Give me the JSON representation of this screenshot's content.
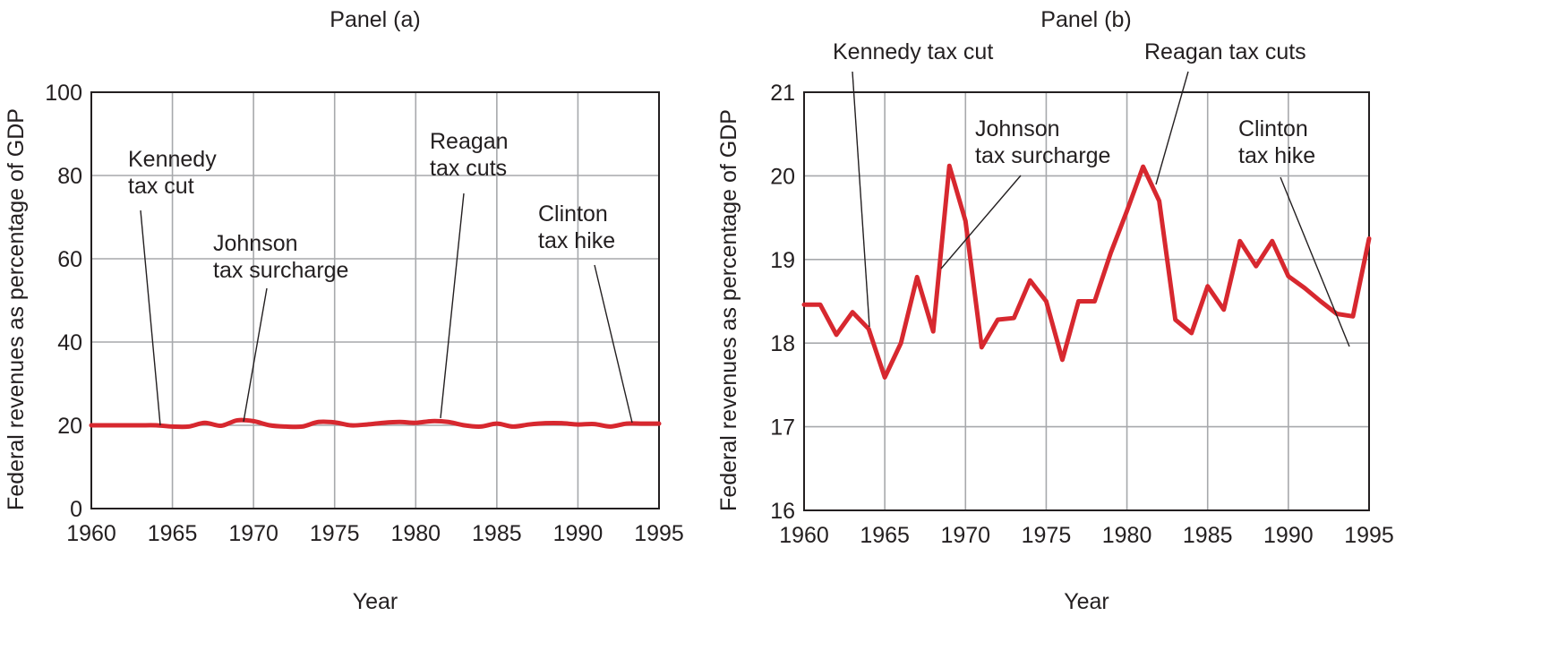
{
  "colors": {
    "series": "#d7282f",
    "grid": "#a7a9ac",
    "text": "#231f20"
  },
  "chart_data": [
    {
      "type": "line",
      "title": "Panel (a)",
      "xlabel": "Year",
      "ylabel": "Federal revenues as percentage of GDP",
      "xlim": [
        1960,
        1995
      ],
      "ylim": [
        0,
        100
      ],
      "grid": true,
      "xticks": [
        1960,
        1965,
        1970,
        1975,
        1980,
        1985,
        1990,
        1995
      ],
      "yticks": [
        0,
        20,
        40,
        60,
        80,
        100
      ],
      "xtick_labels": [
        "1960",
        "1965",
        "1970",
        "1975",
        "1980",
        "1985",
        "1990",
        "1995"
      ],
      "ytick_labels": [
        "0",
        "20",
        "40",
        "60",
        "80",
        "100"
      ],
      "series": [
        {
          "name": "Federal revenues (% of GDP)",
          "x": [
            1960,
            1961,
            1962,
            1963,
            1964,
            1965,
            1966,
            1967,
            1968,
            1969,
            1970,
            1971,
            1972,
            1973,
            1974,
            1975,
            1976,
            1977,
            1978,
            1979,
            1980,
            1981,
            1982,
            1983,
            1984,
            1985,
            1986,
            1987,
            1988,
            1989,
            1990,
            1991,
            1992,
            1993,
            1994,
            1995
          ],
          "values": [
            20.0,
            20.0,
            20.0,
            20.0,
            20.0,
            19.7,
            19.7,
            20.6,
            19.9,
            21.2,
            21.0,
            20.0,
            19.7,
            19.7,
            20.8,
            20.7,
            20.0,
            20.2,
            20.6,
            20.8,
            20.6,
            21.0,
            20.8,
            20.0,
            19.7,
            20.4,
            19.7,
            20.2,
            20.5,
            20.5,
            20.2,
            20.3,
            19.7,
            20.4,
            20.4,
            20.4
          ]
        }
      ],
      "annotations": [
        {
          "lines": [
            "Kennedy",
            "tax cut"
          ],
          "year": 1964
        },
        {
          "lines": [
            "Johnson",
            "tax surcharge"
          ],
          "year": 1969.3
        },
        {
          "lines": [
            "Reagan",
            "tax cuts"
          ],
          "year": 1981.5
        },
        {
          "lines": [
            "Clinton",
            "tax hike"
          ],
          "year": 1993.3
        }
      ]
    },
    {
      "type": "line",
      "title": "Panel (b)",
      "xlabel": "Year",
      "ylabel": "Federal revenues as percentage of GDP",
      "xlim": [
        1960,
        1995
      ],
      "ylim": [
        16,
        21
      ],
      "grid": true,
      "xticks": [
        1960,
        1965,
        1970,
        1975,
        1980,
        1985,
        1990,
        1995
      ],
      "yticks": [
        16,
        17,
        18,
        19,
        20,
        21
      ],
      "xtick_labels": [
        "1960",
        "1965",
        "1970",
        "1975",
        "1980",
        "1985",
        "1990",
        "1995"
      ],
      "ytick_labels": [
        "16",
        "17",
        "18",
        "19",
        "20",
        "21"
      ],
      "series": [
        {
          "name": "Federal revenues (% of GDP)",
          "x": [
            1960,
            1961,
            1962,
            1963,
            1964,
            1965,
            1966,
            1967,
            1968,
            1969,
            1970,
            1971,
            1972,
            1973,
            1974,
            1975,
            1976,
            1977,
            1978,
            1979,
            1980,
            1981,
            1982,
            1983,
            1984,
            1985,
            1986,
            1987,
            1988,
            1989,
            1990,
            1991,
            1992,
            1993,
            1994,
            1995
          ],
          "values": [
            18.46,
            18.46,
            18.1,
            18.37,
            18.17,
            17.59,
            18.0,
            18.79,
            18.14,
            20.12,
            19.46,
            17.95,
            18.28,
            18.3,
            18.75,
            18.5,
            17.8,
            18.5,
            18.5,
            19.08,
            19.58,
            20.11,
            19.7,
            18.28,
            18.12,
            18.68,
            18.4,
            19.22,
            18.92,
            19.22,
            18.8,
            18.66,
            18.5,
            18.35,
            18.32,
            19.25
          ]
        }
      ],
      "annotations": [
        {
          "lines": [
            "Kennedy tax cut"
          ],
          "year": 1964
        },
        {
          "lines": [
            "Johnson",
            "tax surcharge"
          ],
          "year": 1968.6
        },
        {
          "lines": [
            "Reagan tax cuts"
          ],
          "year": 1981.5
        },
        {
          "lines": [
            "Clinton",
            "tax hike"
          ],
          "year": 1993.6
        }
      ]
    }
  ]
}
